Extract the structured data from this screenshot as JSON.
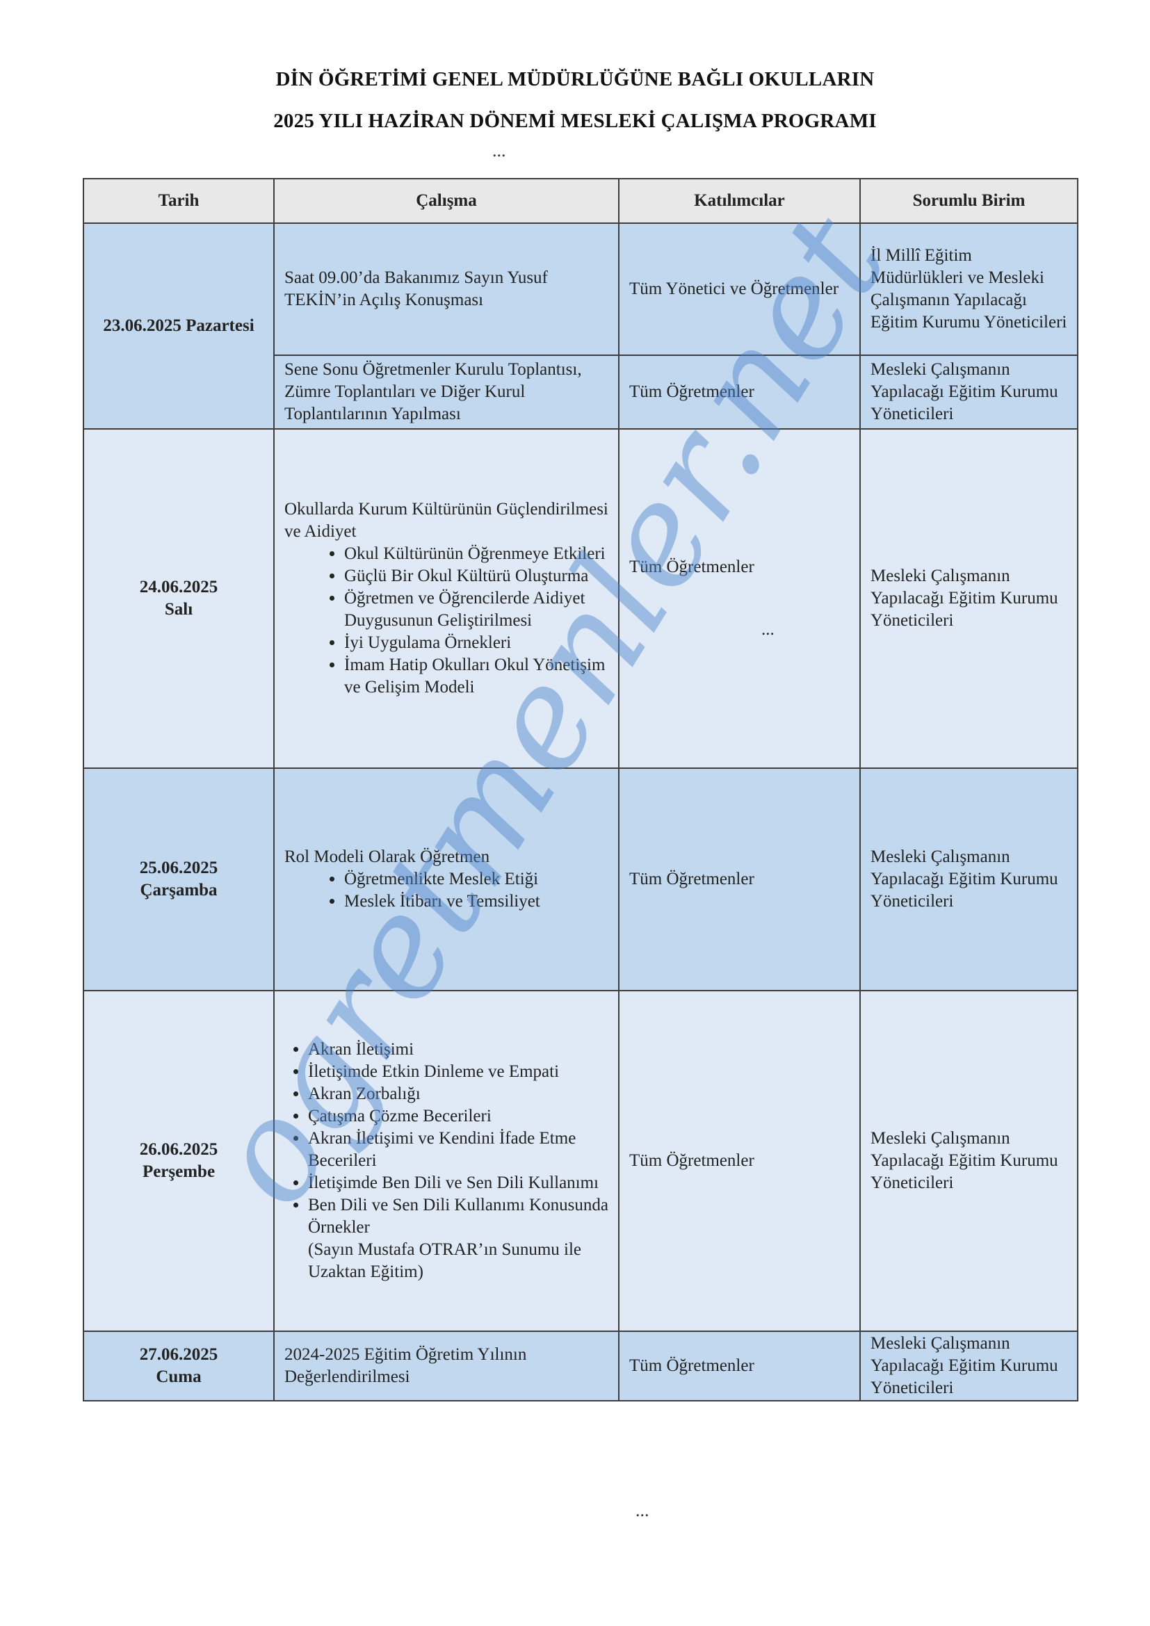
{
  "title_line1": "DİN ÖĞRETİMİ GENEL MÜDÜRLÜĞÜNE BAĞLI OKULLARIN",
  "title_line2": "2025 YILI HAZİRAN DÖNEMİ MESLEKİ ÇALIŞMA PROGRAMI",
  "ellipsis": "...",
  "headers": {
    "tarih": "Tarih",
    "calisma": "Çalışma",
    "katilimcilar": "Katılımcılar",
    "sorumlu": "Sorumlu Birim"
  },
  "rows": [
    {
      "date": "23.06.2025 Pazartesi",
      "calisma": "Saat 09.00’da Bakanımız Sayın Yusuf TEKİN’in Açılış Konuşması",
      "katilimcilar": "Tüm Yönetici ve Öğretmenler",
      "sorumlu": "İl Millî Eğitim Müdürlükleri ve Mesleki Çalışmanın Yapılacağı Eğitim Kurumu Yöneticileri"
    },
    {
      "calisma": "Sene Sonu Öğretmenler Kurulu Toplantısı, Zümre Toplantıları ve Diğer Kurul Toplantılarının Yapılması",
      "katilimcilar": "Tüm Öğretmenler",
      "sorumlu": "Mesleki Çalışmanın Yapılacağı Eğitim Kurumu Yöneticileri"
    },
    {
      "date": "24.06.2025",
      "day": "Salı",
      "calisma_title": "Okullarda Kurum Kültürünün Güçlendirilmesi ve Aidiyet",
      "items": [
        "Okul Kültürünün Öğrenmeye Etkileri",
        "Güçlü Bir Okul Kültürü Oluşturma",
        "Öğretmen ve Öğrencilerde Aidiyet Duygusunun Geliştirilmesi",
        "İyi Uygulama Örnekleri",
        "İmam Hatip Okulları Okul Yönetişim ve Gelişim Modeli"
      ],
      "katilimcilar": "Tüm Öğretmenler",
      "katilimcilar_extra": "...",
      "sorumlu": "Mesleki Çalışmanın Yapılacağı Eğitim Kurumu Yöneticileri"
    },
    {
      "date": "25.06.2025",
      "day": "Çarşamba",
      "calisma_title": "Rol Modeli Olarak Öğretmen",
      "items": [
        "Öğretmenlikte Meslek Etiği",
        "Meslek İtibarı ve Temsiliyet"
      ],
      "katilimcilar": "Tüm Öğretmenler",
      "sorumlu": "Mesleki Çalışmanın Yapılacağı Eğitim Kurumu Yöneticileri"
    },
    {
      "date": "26.06.2025",
      "day": "Perşembe",
      "items": [
        "Akran İletişimi",
        "İletişimde Etkin Dinleme ve Empati",
        "Akran Zorbalığı",
        "Çatışma Çözme Becerileri",
        "Akran İletişimi ve Kendini İfade Etme Becerileri",
        "İletişimde Ben Dili ve Sen Dili Kullanımı",
        "Ben Dili ve Sen Dili Kullanımı Konusunda Örnekler"
      ],
      "note": "(Sayın Mustafa OTRAR’ın Sunumu ile Uzaktan Eğitim)",
      "katilimcilar": "Tüm Öğretmenler",
      "sorumlu": "Mesleki Çalışmanın Yapılacağı Eğitim Kurumu Yöneticileri"
    },
    {
      "date": "27.06.2025",
      "day": "Cuma",
      "calisma": "2024-2025 Eğitim Öğretim Yılının Değerlendirilmesi",
      "katilimcilar": "Tüm Öğretmenler",
      "sorumlu": "Mesleki Çalışmanın Yapılacağı Eğitim Kurumu Yöneticileri"
    }
  ],
  "watermark": "ogretmenler.net",
  "colors": {
    "row_dark": "#c2d8ee",
    "row_light": "#dfeaf6",
    "header": "#e8e8e8",
    "watermark": "#4b82cd"
  }
}
